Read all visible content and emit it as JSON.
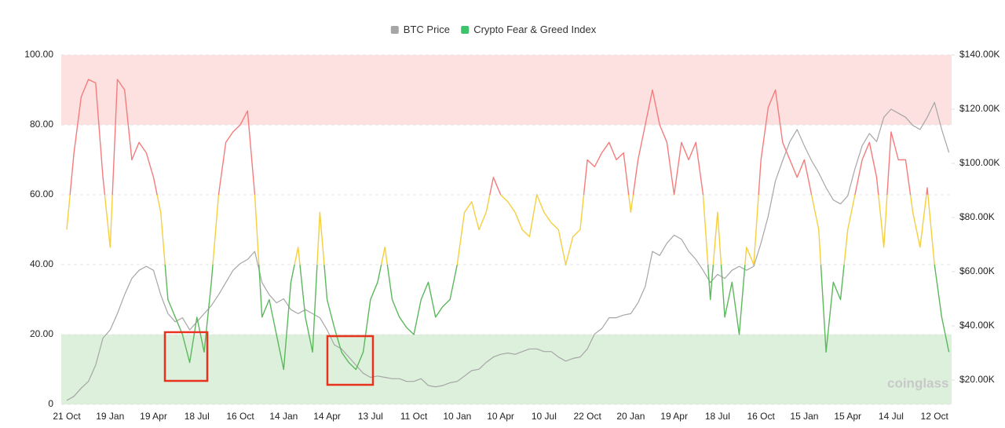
{
  "chart_data": {
    "type": "line",
    "legend": "top",
    "watermark": "coinglass",
    "categories": [
      "21 Oct",
      null,
      null,
      null,
      null,
      null,
      "19 Jan",
      null,
      null,
      null,
      null,
      null,
      "19 Apr",
      null,
      null,
      null,
      null,
      null,
      "18 Jul",
      null,
      null,
      null,
      null,
      null,
      "16 Oct",
      null,
      null,
      null,
      null,
      null,
      "14 Jan",
      null,
      null,
      null,
      null,
      null,
      "14 Apr",
      null,
      null,
      null,
      null,
      null,
      "13 Jul",
      null,
      null,
      null,
      null,
      null,
      "11 Oct",
      null,
      null,
      null,
      null,
      null,
      "10 Jan",
      null,
      null,
      null,
      null,
      null,
      "10 Apr",
      null,
      null,
      null,
      null,
      null,
      "10 Jul",
      null,
      null,
      null,
      null,
      null,
      "22 Oct",
      null,
      null,
      null,
      null,
      null,
      "20 Jan",
      null,
      null,
      null,
      null,
      null,
      "19 Apr",
      null,
      null,
      null,
      null,
      null,
      "18 Jul",
      null,
      null,
      null,
      null,
      null,
      "16 Oct",
      null,
      null,
      null,
      null,
      null,
      "15 Jan",
      null,
      null,
      null,
      null,
      null,
      "15 Apr",
      null,
      null,
      null,
      null,
      null,
      "14 Jul",
      null,
      null,
      null,
      null,
      null,
      "12 Oct",
      null,
      null
    ],
    "series": [
      {
        "name": "BTC Price",
        "color": "#a6a6a6",
        "axis": "y2",
        "values": [
          12500,
          14000,
          17000,
          19500,
          25500,
          35500,
          38500,
          44500,
          51500,
          57500,
          60500,
          62000,
          60500,
          51500,
          44500,
          41500,
          43000,
          38500,
          41500,
          44500,
          47500,
          51500,
          56000,
          60500,
          63000,
          64500,
          67500,
          56000,
          51500,
          48500,
          50000,
          46000,
          44500,
          46000,
          44500,
          43000,
          38500,
          33000,
          31500,
          28500,
          25500,
          22500,
          21000,
          21500,
          21000,
          20500,
          20500,
          19500,
          19500,
          20500,
          18000,
          17500,
          18000,
          19000,
          19500,
          21500,
          23500,
          24000,
          26500,
          28500,
          29500,
          30000,
          29500,
          30500,
          31500,
          31500,
          30500,
          30500,
          28500,
          27000,
          28000,
          28500,
          31500,
          37000,
          39000,
          43000,
          43000,
          44000,
          44500,
          48500,
          54500,
          67500,
          66000,
          70500,
          73500,
          72000,
          67500,
          64500,
          60500,
          56000,
          59000,
          57500,
          60500,
          62000,
          60500,
          62000,
          70500,
          80500,
          93500,
          101000,
          108000,
          112500,
          106500,
          101000,
          96500,
          91000,
          86500,
          85000,
          88000,
          98000,
          106500,
          111000,
          108000,
          117000,
          120000,
          118500,
          117000,
          114000,
          112500,
          117000,
          122500,
          112500,
          104000
        ]
      },
      {
        "name": "Crypto Fear & Greed Index",
        "color": "#3cc46b",
        "color_bands": [
          {
            "from": 0,
            "to": 40,
            "color": "#5cb85c"
          },
          {
            "from": 40,
            "to": 60,
            "color": "#f5cf3f"
          },
          {
            "from": 60,
            "to": 100,
            "color": "#f47c7c"
          }
        ],
        "values": [
          50,
          72,
          88,
          93,
          92,
          65,
          45,
          93,
          90,
          70,
          75,
          72,
          65,
          55,
          30,
          25,
          20,
          12,
          25,
          15,
          35,
          60,
          75,
          78,
          80,
          84,
          60,
          25,
          30,
          20,
          10,
          35,
          45,
          25,
          15,
          55,
          30,
          22,
          15,
          12,
          10,
          15,
          30,
          35,
          45,
          30,
          25,
          22,
          20,
          30,
          35,
          25,
          28,
          30,
          40,
          55,
          58,
          50,
          55,
          65,
          60,
          58,
          55,
          50,
          48,
          60,
          55,
          52,
          50,
          40,
          48,
          50,
          70,
          68,
          72,
          75,
          70,
          72,
          55,
          70,
          80,
          90,
          80,
          75,
          60,
          75,
          70,
          75,
          60,
          30,
          55,
          25,
          35,
          20,
          45,
          40,
          70,
          85,
          90,
          75,
          70,
          65,
          70,
          60,
          50,
          15,
          35,
          30,
          50,
          60,
          70,
          75,
          65,
          45,
          78,
          70,
          70,
          55,
          45,
          62,
          40,
          25,
          15
        ]
      }
    ],
    "zones": [
      {
        "from": 80,
        "to": 100,
        "color": "#fde0e0"
      },
      {
        "from": 0,
        "to": 20,
        "color": "#dcf0dc"
      }
    ],
    "ylim": [
      0,
      100
    ],
    "yticks": [
      0,
      {
        "value": 20,
        "label": "20.00"
      },
      {
        "value": 40,
        "label": "40.00"
      },
      {
        "value": 60,
        "label": "60.00"
      },
      {
        "value": 80,
        "label": "80.00"
      },
      {
        "value": 100,
        "label": "100.00"
      }
    ],
    "y2lim": [
      11000,
      140000
    ],
    "y2ticks": [
      {
        "value": 20000,
        "label": "$20.00K"
      },
      {
        "value": 40000,
        "label": "$40.00K"
      },
      {
        "value": 60000,
        "label": "$60.00K"
      },
      {
        "value": 80000,
        "label": "$80.00K"
      },
      {
        "value": 100000,
        "label": "$100.00K"
      },
      {
        "value": 120000,
        "label": "$120.00K"
      },
      {
        "value": 140000,
        "label": "$140.00K"
      }
    ],
    "grid": true
  }
}
